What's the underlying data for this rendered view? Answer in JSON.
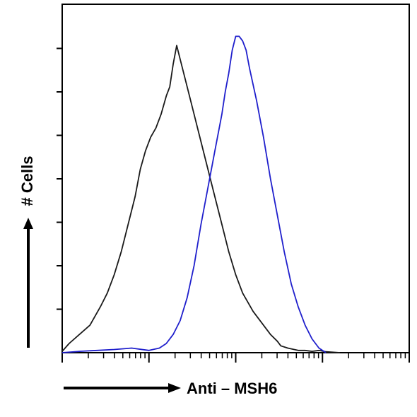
{
  "chart_data": {
    "type": "line",
    "title": "",
    "xlabel": "Anti – MSH6",
    "ylabel": "# Cells",
    "x_scale": "log",
    "y_tick_count": 7,
    "grid": false,
    "legend": "none",
    "series": [
      {
        "color": "#1a1a1a",
        "x": [
          0,
          2,
          5,
          8,
          11,
          13,
          15,
          17,
          19,
          21,
          22.5,
          24,
          25.5,
          27,
          28.5,
          30,
          31,
          32,
          33,
          34,
          36,
          38,
          40,
          42,
          44,
          46,
          48,
          50,
          52,
          55,
          58,
          60,
          62,
          63,
          65,
          68,
          70,
          72,
          74,
          76,
          80
        ],
        "y": [
          0.3,
          2,
          4,
          6,
          10,
          13,
          17,
          22,
          28,
          34,
          40,
          44,
          47,
          49,
          52,
          56,
          58,
          63,
          67,
          64,
          58,
          52,
          46,
          40,
          34,
          28,
          22,
          17,
          13,
          9,
          6,
          4,
          2.5,
          1.5,
          1,
          0.5,
          0.5,
          0.3,
          0.5,
          0.2,
          0
        ]
      },
      {
        "color": "#1f1fcc",
        "x": [
          0,
          5,
          10,
          15,
          20,
          25,
          28,
          30,
          32,
          34,
          36,
          38,
          40,
          42,
          44,
          46,
          47,
          48,
          49,
          50,
          51,
          52,
          53,
          54,
          56,
          58,
          60,
          62,
          64,
          66,
          68,
          70,
          72,
          74,
          76
        ],
        "y": [
          0,
          0.3,
          0.5,
          0.7,
          1,
          0.5,
          1,
          2,
          4,
          7,
          12,
          19,
          28,
          36,
          44,
          52,
          57,
          61,
          66,
          69,
          69,
          68,
          66,
          62,
          55,
          47,
          38,
          30,
          22,
          15,
          10,
          6,
          3,
          1,
          0
        ]
      }
    ]
  }
}
